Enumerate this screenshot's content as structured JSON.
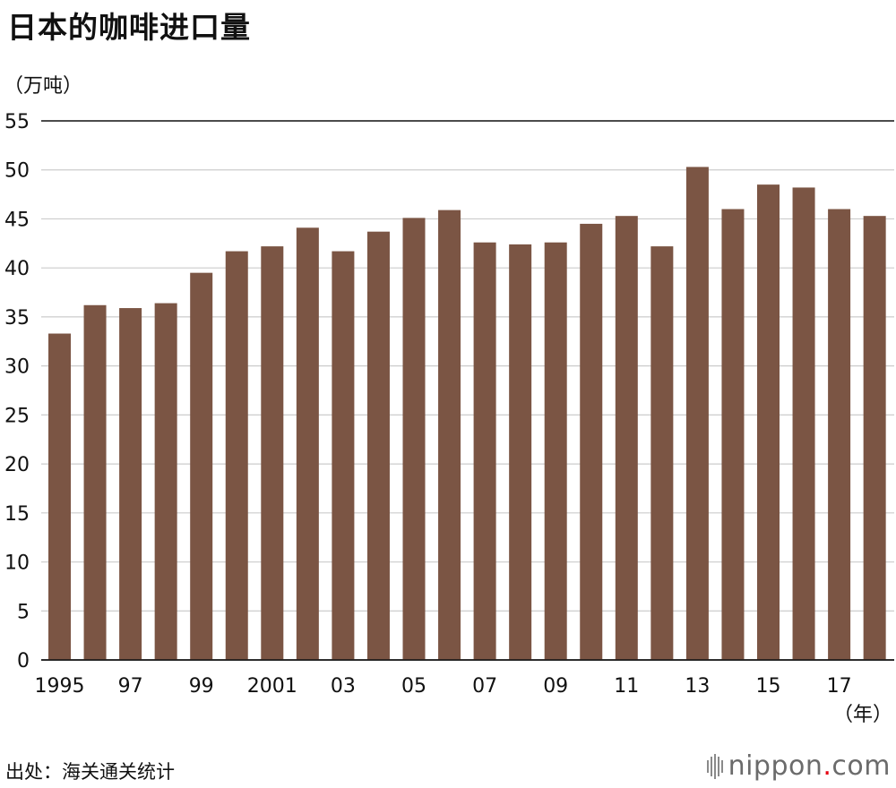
{
  "title": "日本的咖啡进口量",
  "source": "出处：海关通关统计",
  "logo": {
    "name": "nippon",
    "dot": ".",
    "domain": "com"
  },
  "colors": {
    "bar": "#7b5544",
    "grid": "#cccccc",
    "axis": "#111111"
  },
  "chart_data": {
    "type": "bar",
    "title": "日本的咖啡进口量",
    "ylabel": "（万吨）",
    "xlabel": "（年）",
    "ylim": [
      0,
      55
    ],
    "yticks": [
      0,
      5,
      10,
      15,
      20,
      25,
      30,
      35,
      40,
      45,
      50,
      55
    ],
    "grid": true,
    "categories": [
      "1995",
      "1996",
      "1997",
      "1998",
      "1999",
      "2000",
      "2001",
      "2002",
      "2003",
      "2004",
      "2005",
      "2006",
      "2007",
      "2008",
      "2009",
      "2010",
      "2011",
      "2012",
      "2013",
      "2014",
      "2015",
      "2016",
      "2017",
      "2018"
    ],
    "tick_labels": [
      "1995",
      "97",
      "99",
      "2001",
      "03",
      "05",
      "07",
      "09",
      "11",
      "13",
      "15",
      "17"
    ],
    "values": [
      33.3,
      36.2,
      35.9,
      36.4,
      39.5,
      41.7,
      42.2,
      44.1,
      41.7,
      43.7,
      45.1,
      45.9,
      42.6,
      42.4,
      42.6,
      44.5,
      45.3,
      42.2,
      50.3,
      46.0,
      48.5,
      48.2,
      46.0,
      45.3
    ]
  }
}
